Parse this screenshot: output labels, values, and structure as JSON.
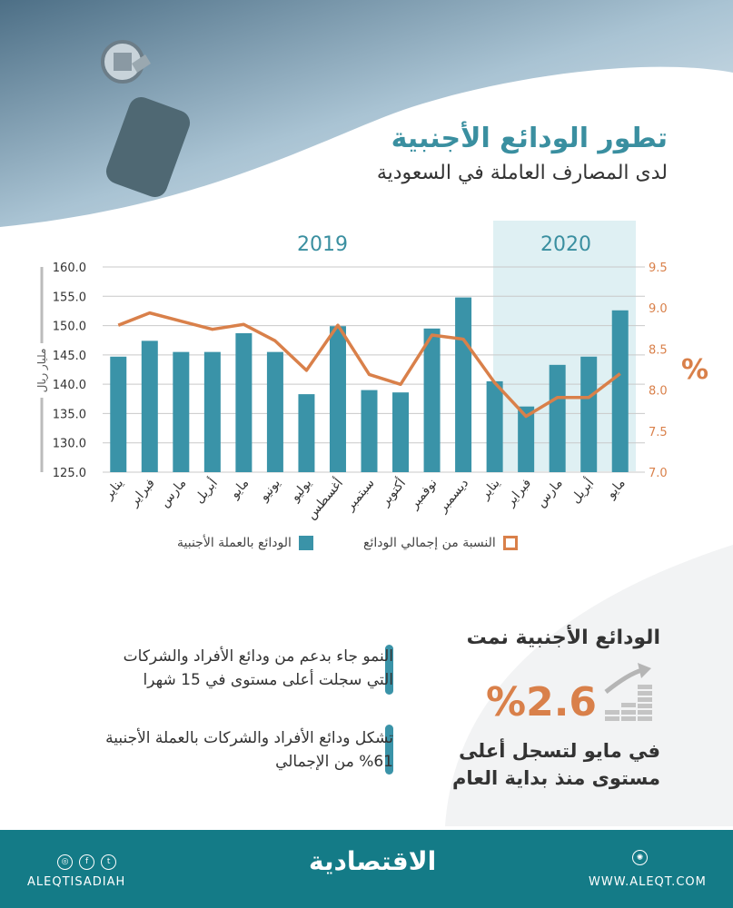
{
  "header": {
    "title": "تطور الودائع الأجنبية",
    "subtitle": "لدى المصارف العاملة في السعودية"
  },
  "chart_data": {
    "type": "bar",
    "year_labels": [
      "2019",
      "2020"
    ],
    "categories": [
      "يناير",
      "فبراير",
      "مارس",
      "أبريل",
      "مايو",
      "يونيو",
      "يوليو",
      "أغسطس",
      "سبتمبر",
      "أكتوبر",
      "نوفمبر",
      "ديسمبر",
      "يناير",
      "فبراير",
      "مارس",
      "أبريل",
      "مايو"
    ],
    "series": [
      {
        "name": "الودائع بالعملة الأجنبية",
        "type": "bar",
        "axis": "left",
        "color": "#3a93a8",
        "values": [
          144.7,
          147.4,
          145.5,
          145.5,
          148.7,
          145.5,
          138.3,
          149.9,
          139.0,
          138.6,
          149.5,
          154.8,
          140.5,
          136.2,
          143.3,
          144.7,
          152.6
        ]
      },
      {
        "name": "النسبة من إجمالي الودائع",
        "type": "line",
        "axis": "right",
        "color": "#d9804a",
        "values": [
          8.79,
          8.94,
          8.84,
          8.74,
          8.8,
          8.6,
          8.24,
          8.79,
          8.19,
          8.07,
          8.67,
          8.62,
          8.09,
          7.68,
          7.91,
          7.91,
          8.2
        ]
      }
    ],
    "ylabel": "مليار ريال",
    "y2label": "%",
    "ylim": [
      125,
      160
    ],
    "yticks": [
      "125.0",
      "130.0",
      "135.0",
      "140.0",
      "145.0",
      "150.0",
      "155.0",
      "160.0"
    ],
    "y2lim": [
      7.0,
      9.5
    ],
    "y2ticks": [
      "7.0",
      "7.5",
      "8.0",
      "8.5",
      "9.0",
      "9.5"
    ],
    "highlight_range": "2020",
    "grid": true,
    "legend": "bottom"
  },
  "bullets": [
    "النمو جاء بدعم من ودائع الأفراد والشركات التي سجلت أعلى مستوى في 15 شهرا",
    "تشكل ودائع الأفراد والشركات بالعملة الأجنبية 61% من الإجمالي"
  ],
  "highlight": {
    "title": "الودائع الأجنبية نمت",
    "value": "%2.6",
    "desc": "في مايو لتسجل أعلى مستوى منذ بداية العام"
  },
  "footer": {
    "social_handle": "ALEQTISADIAH",
    "logo_text": "الاقتصادية",
    "website": "WWW.ALEQT.COM"
  },
  "colors": {
    "teal": "#3a93a8",
    "orange": "#d9804a",
    "footer": "#147b87",
    "highlight_band": "#dff0f3"
  }
}
